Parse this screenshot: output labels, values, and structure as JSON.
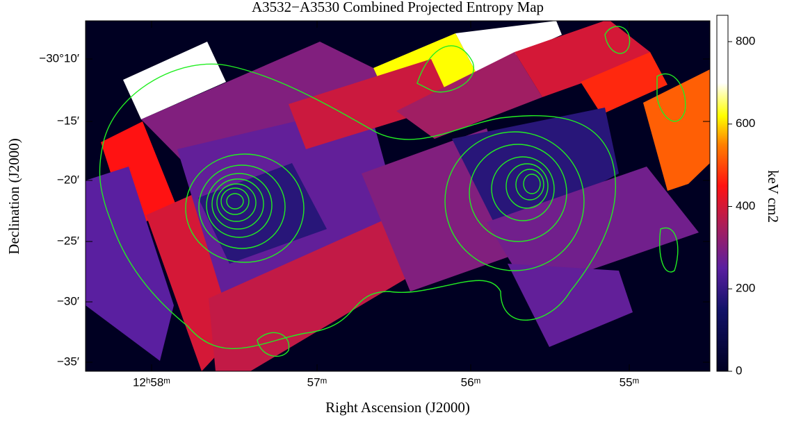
{
  "chart_data": {
    "type": "map",
    "title": "A3532−A3530 Combined Projected Entropy Map",
    "x_label": "Right Ascension (J2000)",
    "y_label": "Declination (J2000)",
    "colorbar_label": "keV cm2",
    "xticks": [
      "12ʰ58ᵐ",
      "57ᵐ",
      "56ᵐ",
      "55ᵐ"
    ],
    "yticks": [
      "−30°10′",
      "−15′",
      "−20′",
      "−25′",
      "−30′",
      "−35′"
    ],
    "clim": [
      0,
      864
    ],
    "cticks": [
      0,
      200,
      400,
      600,
      800
    ],
    "colormap": [
      {
        "value": 0,
        "color": "#000022"
      },
      {
        "value": 150,
        "color": "#121268"
      },
      {
        "value": 250,
        "color": "#5a1fa0"
      },
      {
        "value": 350,
        "color": "#a81e5c"
      },
      {
        "value": 450,
        "color": "#ff1212"
      },
      {
        "value": 550,
        "color": "#ff8000"
      },
      {
        "value": 620,
        "color": "#ffff00"
      },
      {
        "value": 700,
        "color": "#ffffff"
      }
    ],
    "values": [
      850,
      850,
      620,
      600,
      400,
      470,
      520,
      300,
      450,
      250,
      400,
      260,
      180,
      380,
      390,
      300,
      180,
      280,
      260,
      340
    ]
  }
}
